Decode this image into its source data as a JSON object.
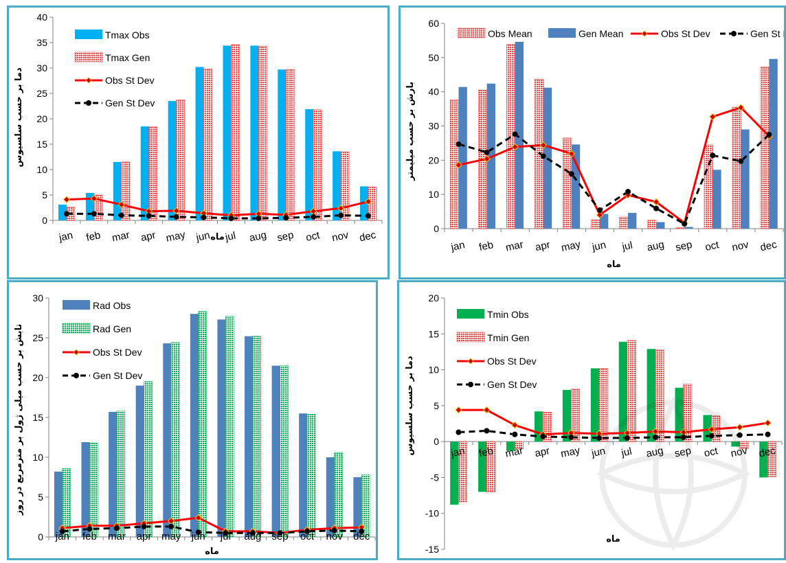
{
  "chart_data": [
    {
      "type": "bar",
      "categories": [
        "jan",
        "feb",
        "mar",
        "apr",
        "may",
        "jun",
        "jul",
        "aug",
        "sep",
        "oct",
        "nov",
        "dec"
      ],
      "xlabel": "ماه",
      "ylabel": "دما بر حسب سلسیوس",
      "ylim": [
        0,
        40
      ],
      "yticks": [
        0,
        5,
        10,
        15,
        20,
        25,
        30,
        35,
        40
      ],
      "legend": "top-left",
      "series": [
        {
          "name": "Tmax Obs",
          "kind": "bar",
          "color": "#00b0f0",
          "values": [
            3.1,
            5.4,
            11.5,
            18.5,
            23.5,
            30.2,
            34.4,
            34.4,
            29.7,
            21.9,
            13.6,
            6.7
          ]
        },
        {
          "name": "Tmax Gen",
          "kind": "bar",
          "color": "#ff4040",
          "pattern": "dotted",
          "values": [
            2.6,
            5.0,
            11.5,
            18.4,
            23.7,
            29.8,
            34.6,
            34.3,
            29.7,
            21.8,
            13.5,
            6.6
          ]
        },
        {
          "name": "Obs St Dev",
          "kind": "line",
          "color": "#ff0000",
          "values": [
            4.1,
            4.3,
            3.1,
            1.8,
            1.9,
            1.4,
            1.0,
            1.3,
            1.1,
            1.8,
            2.4,
            3.7
          ]
        },
        {
          "name": "Gen St Dev",
          "kind": "dashed-line",
          "color": "#000000",
          "values": [
            1.3,
            1.3,
            1.0,
            0.9,
            0.7,
            0.6,
            0.4,
            0.4,
            0.5,
            0.7,
            1.0,
            0.9
          ]
        }
      ]
    },
    {
      "type": "bar",
      "categories": [
        "jan",
        "feb",
        "mar",
        "apr",
        "may",
        "jun",
        "jul",
        "aug",
        "sep",
        "oct",
        "nov",
        "dec"
      ],
      "xlabel": "ماه",
      "ylabel": "بارش بر حسب میلیمتر",
      "ylim": [
        0,
        60
      ],
      "yticks": [
        0,
        10,
        20,
        30,
        40,
        50,
        60
      ],
      "legend": "top",
      "series": [
        {
          "name": "Obs Mean",
          "kind": "bar",
          "color": "#ff4040",
          "pattern": "dotted",
          "values": [
            37.7,
            40.5,
            53.9,
            43.7,
            26.5,
            2.6,
            3.4,
            2.5,
            0.3,
            24.5,
            35.5,
            47.3
          ]
        },
        {
          "name": "Gen Mean",
          "kind": "bar",
          "color": "#4f81bd",
          "values": [
            41.4,
            42.4,
            54.6,
            41.2,
            24.6,
            4.3,
            4.6,
            1.9,
            0.5,
            17.2,
            29.0,
            49.6
          ]
        },
        {
          "name": "Obs St Dev",
          "kind": "line",
          "color": "#ff0000",
          "values": [
            18.6,
            20.4,
            23.9,
            24.4,
            21.9,
            4.0,
            9.8,
            7.8,
            1.7,
            32.7,
            35.4,
            27.0
          ]
        },
        {
          "name": "Gen St Dev",
          "kind": "dashed-line",
          "color": "#000000",
          "values": [
            24.7,
            22.3,
            27.6,
            21.2,
            16.0,
            5.4,
            10.8,
            5.9,
            1.4,
            21.4,
            19.7,
            27.5
          ]
        }
      ]
    },
    {
      "type": "bar",
      "categories": [
        "jan",
        "feb",
        "mar",
        "apr",
        "may",
        "jun",
        "jul",
        "aug",
        "sep",
        "oct",
        "nov",
        "dec"
      ],
      "xlabel": "ماه",
      "ylabel": "تابش بر حسب میلی ژول بر مترمربع در روز",
      "ylim": [
        0,
        30
      ],
      "yticks": [
        0,
        5,
        10,
        15,
        20,
        25,
        30
      ],
      "legend": "top-left",
      "series": [
        {
          "name": "Rad Obs",
          "kind": "bar",
          "color": "#4f81bd",
          "values": [
            8.2,
            11.9,
            15.7,
            19.0,
            24.3,
            28.0,
            27.3,
            25.2,
            21.5,
            15.5,
            10.0,
            7.5
          ]
        },
        {
          "name": "Rad Gen",
          "kind": "bar",
          "color": "#00b050",
          "pattern": "dotted",
          "values": [
            8.6,
            11.8,
            15.8,
            19.5,
            24.4,
            28.3,
            27.7,
            25.2,
            21.5,
            15.4,
            10.6,
            7.8
          ]
        },
        {
          "name": "Obs St Dev",
          "kind": "line",
          "color": "#ff0000",
          "values": [
            1.1,
            1.4,
            1.4,
            1.7,
            2.0,
            2.4,
            0.7,
            0.7,
            0.5,
            0.9,
            1.1,
            1.2
          ]
        },
        {
          "name": "Gen St Dev",
          "kind": "dashed-line",
          "color": "#000000",
          "values": [
            0.7,
            1.0,
            1.1,
            1.3,
            1.3,
            0.6,
            0.5,
            0.5,
            0.5,
            0.7,
            0.8,
            0.7
          ]
        }
      ]
    },
    {
      "type": "bar",
      "categories": [
        "jan",
        "feb",
        "mar",
        "apr",
        "may",
        "jun",
        "jul",
        "aug",
        "sep",
        "oct",
        "nov",
        "dec"
      ],
      "xlabel": "ماه",
      "ylabel": "دما بر حسب سلسیوس",
      "ylim": [
        -15,
        20
      ],
      "yticks": [
        -15,
        -10,
        -5,
        0,
        5,
        10,
        15,
        20
      ],
      "legend": "top-left",
      "series": [
        {
          "name": "Tmin Obs",
          "kind": "bar",
          "color": "#00b050",
          "values": [
            -8.8,
            -7.0,
            -1.3,
            4.2,
            7.2,
            10.2,
            13.9,
            12.9,
            7.5,
            3.7,
            -0.7,
            -5.0
          ]
        },
        {
          "name": "Tmin Gen",
          "kind": "bar",
          "color": "#ff4040",
          "pattern": "dotted",
          "values": [
            -8.4,
            -7.0,
            -1.0,
            4.1,
            7.3,
            10.2,
            14.1,
            12.8,
            8.0,
            3.6,
            -1.0,
            -4.9
          ]
        },
        {
          "name": "Obs St Dev",
          "kind": "line",
          "color": "#ff0000",
          "values": [
            4.4,
            4.4,
            2.3,
            1.0,
            1.2,
            1.1,
            1.2,
            1.4,
            1.3,
            1.7,
            2.0,
            2.6
          ]
        },
        {
          "name": "Gen St Dev",
          "kind": "dashed-line",
          "color": "#000000",
          "values": [
            1.3,
            1.5,
            1.0,
            0.7,
            0.6,
            0.5,
            0.5,
            0.6,
            0.6,
            0.8,
            0.9,
            1.0
          ]
        }
      ]
    }
  ]
}
